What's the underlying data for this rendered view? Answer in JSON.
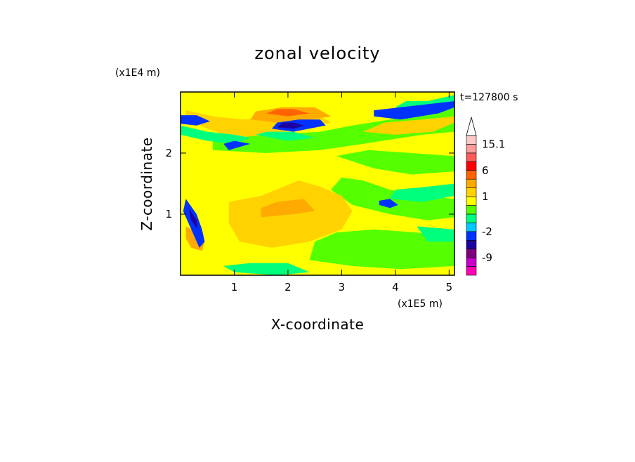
{
  "chart_data": {
    "type": "heatmap",
    "title": "zonal velocity",
    "xlabel": "X-coordinate",
    "ylabel": "Z-coordinate",
    "x_units": "(x1E5 m)",
    "y_units": "(x1E4 m)",
    "time_label": "t=127800 s",
    "xlim": [
      0,
      5.1
    ],
    "ylim": [
      0,
      3.0
    ],
    "x_ticks": [
      "1",
      "2",
      "3",
      "4",
      "5"
    ],
    "y_ticks": [
      "1",
      "2"
    ],
    "colorbar": {
      "levels": [
        -15,
        -12,
        -9,
        -6,
        -4,
        -2,
        -1,
        0,
        0.5,
        1,
        2,
        4,
        6,
        9,
        12,
        15.1
      ],
      "colors": [
        "#ff00b4",
        "#c800c8",
        "#7d007d",
        "#1e00a0",
        "#0032ff",
        "#00c8ff",
        "#00ff7d",
        "#55ff00",
        "#ffff00",
        "#ffd200",
        "#ffaa00",
        "#ff6400",
        "#ff0000",
        "#ff5a5a",
        "#ff9b9b",
        "#ffc8c8"
      ],
      "labels": [
        "15.1",
        "6",
        "1",
        "-2",
        "-9"
      ]
    },
    "regions": [
      {
        "value": 0.5,
        "shape": [
          [
            0.0,
            0.0
          ],
          [
            5.1,
            0.0
          ],
          [
            5.1,
            3.0
          ],
          [
            0.0,
            3.0
          ]
        ]
      },
      {
        "value": 0.2,
        "shape": [
          [
            0.6,
            2.05
          ],
          [
            1.6,
            2.0
          ],
          [
            2.6,
            2.05
          ],
          [
            3.4,
            2.15
          ],
          [
            4.5,
            2.3
          ],
          [
            5.1,
            2.35
          ],
          [
            5.1,
            2.85
          ],
          [
            4.6,
            2.65
          ],
          [
            3.9,
            2.55
          ],
          [
            3.2,
            2.45
          ],
          [
            2.6,
            2.35
          ],
          [
            1.7,
            2.3
          ],
          [
            0.9,
            2.35
          ],
          [
            0.6,
            2.25
          ]
        ]
      },
      {
        "value": 0.2,
        "shape": [
          [
            2.8,
            1.4
          ],
          [
            3.2,
            1.15
          ],
          [
            3.9,
            1.0
          ],
          [
            4.6,
            0.9
          ],
          [
            5.1,
            0.95
          ],
          [
            5.1,
            1.25
          ],
          [
            4.5,
            1.3
          ],
          [
            3.9,
            1.4
          ],
          [
            3.4,
            1.55
          ],
          [
            3.0,
            1.6
          ]
        ]
      },
      {
        "value": 0.2,
        "shape": [
          [
            2.4,
            0.25
          ],
          [
            3.2,
            0.15
          ],
          [
            4.1,
            0.1
          ],
          [
            5.1,
            0.15
          ],
          [
            5.1,
            0.6
          ],
          [
            4.4,
            0.7
          ],
          [
            3.6,
            0.75
          ],
          [
            2.9,
            0.7
          ],
          [
            2.5,
            0.55
          ]
        ]
      },
      {
        "value": 0.2,
        "shape": [
          [
            2.9,
            1.95
          ],
          [
            3.6,
            1.75
          ],
          [
            4.3,
            1.65
          ],
          [
            5.1,
            1.7
          ],
          [
            5.1,
            1.95
          ],
          [
            4.3,
            2.0
          ],
          [
            3.5,
            2.05
          ]
        ]
      },
      {
        "value": 1.5,
        "shape": [
          [
            0.9,
            1.2
          ],
          [
            1.5,
            1.3
          ],
          [
            2.2,
            1.55
          ],
          [
            2.6,
            1.45
          ],
          [
            3.0,
            1.3
          ],
          [
            3.2,
            1.05
          ],
          [
            3.0,
            0.75
          ],
          [
            2.4,
            0.55
          ],
          [
            1.7,
            0.45
          ],
          [
            1.1,
            0.55
          ],
          [
            0.9,
            0.85
          ]
        ]
      },
      {
        "value": 1.5,
        "shape": [
          [
            3.4,
            2.35
          ],
          [
            4.0,
            2.3
          ],
          [
            4.7,
            2.35
          ],
          [
            5.1,
            2.5
          ],
          [
            5.1,
            2.6
          ],
          [
            4.5,
            2.55
          ],
          [
            3.8,
            2.5
          ]
        ]
      },
      {
        "value": 1.5,
        "shape": [
          [
            0.1,
            2.55
          ],
          [
            0.5,
            2.4
          ],
          [
            1.0,
            2.25
          ],
          [
            1.6,
            2.3
          ],
          [
            2.2,
            2.4
          ],
          [
            2.8,
            2.5
          ],
          [
            2.6,
            2.6
          ],
          [
            1.9,
            2.6
          ],
          [
            1.2,
            2.55
          ],
          [
            0.6,
            2.6
          ],
          [
            0.1,
            2.7
          ]
        ]
      },
      {
        "value": 3.0,
        "shape": [
          [
            1.3,
            2.55
          ],
          [
            1.8,
            2.5
          ],
          [
            2.4,
            2.55
          ],
          [
            2.8,
            2.6
          ],
          [
            2.5,
            2.75
          ],
          [
            1.9,
            2.75
          ],
          [
            1.4,
            2.68
          ]
        ]
      },
      {
        "value": 3.0,
        "shape": [
          [
            1.5,
            0.95
          ],
          [
            2.1,
            1.0
          ],
          [
            2.5,
            1.05
          ],
          [
            2.3,
            1.25
          ],
          [
            1.8,
            1.2
          ],
          [
            1.5,
            1.1
          ]
        ]
      },
      {
        "value": 3.0,
        "shape": [
          [
            0.1,
            0.8
          ],
          [
            0.3,
            0.7
          ],
          [
            0.45,
            0.55
          ],
          [
            0.4,
            0.4
          ],
          [
            0.2,
            0.45
          ],
          [
            0.1,
            0.6
          ]
        ]
      },
      {
        "value": 5.0,
        "shape": [
          [
            1.6,
            2.65
          ],
          [
            2.0,
            2.6
          ],
          [
            2.4,
            2.65
          ],
          [
            2.1,
            2.72
          ],
          [
            1.8,
            2.72
          ]
        ]
      },
      {
        "value": -0.5,
        "shape": [
          [
            0.0,
            2.3
          ],
          [
            0.5,
            2.2
          ],
          [
            1.0,
            2.15
          ],
          [
            1.3,
            2.25
          ],
          [
            1.0,
            2.3
          ],
          [
            0.5,
            2.35
          ],
          [
            0.0,
            2.45
          ]
        ]
      },
      {
        "value": -0.5,
        "shape": [
          [
            3.9,
            1.25
          ],
          [
            4.5,
            1.2
          ],
          [
            5.1,
            1.3
          ],
          [
            5.1,
            1.5
          ],
          [
            4.6,
            1.45
          ],
          [
            4.0,
            1.4
          ]
        ]
      },
      {
        "value": -0.5,
        "shape": [
          [
            4.4,
            0.8
          ],
          [
            5.1,
            0.75
          ],
          [
            5.1,
            0.55
          ],
          [
            4.6,
            0.55
          ]
        ]
      },
      {
        "value": -0.5,
        "shape": [
          [
            1.4,
            2.3
          ],
          [
            2.0,
            2.2
          ],
          [
            2.5,
            2.25
          ],
          [
            2.1,
            2.35
          ],
          [
            1.6,
            2.35
          ]
        ]
      },
      {
        "value": -0.5,
        "shape": [
          [
            4.0,
            2.75
          ],
          [
            4.6,
            2.65
          ],
          [
            5.1,
            2.75
          ],
          [
            5.1,
            2.95
          ],
          [
            4.6,
            2.85
          ],
          [
            4.2,
            2.85
          ]
        ]
      },
      {
        "value": -0.5,
        "shape": [
          [
            1.0,
            0.05
          ],
          [
            1.8,
            0.0
          ],
          [
            2.4,
            0.05
          ],
          [
            2.0,
            0.2
          ],
          [
            1.3,
            0.2
          ],
          [
            0.8,
            0.15
          ]
        ]
      },
      {
        "value": -3.0,
        "shape": [
          [
            1.7,
            2.4
          ],
          [
            2.1,
            2.35
          ],
          [
            2.7,
            2.45
          ],
          [
            2.6,
            2.55
          ],
          [
            2.2,
            2.55
          ],
          [
            1.8,
            2.5
          ]
        ]
      },
      {
        "value": -3.0,
        "shape": [
          [
            3.6,
            2.6
          ],
          [
            4.1,
            2.55
          ],
          [
            4.8,
            2.65
          ],
          [
            5.1,
            2.75
          ],
          [
            5.1,
            2.85
          ],
          [
            4.6,
            2.8
          ],
          [
            4.1,
            2.75
          ],
          [
            3.6,
            2.7
          ]
        ]
      },
      {
        "value": -3.0,
        "shape": [
          [
            0.0,
            2.48
          ],
          [
            0.3,
            2.45
          ],
          [
            0.55,
            2.52
          ],
          [
            0.3,
            2.62
          ],
          [
            0.0,
            2.62
          ]
        ]
      },
      {
        "value": -3.0,
        "shape": [
          [
            0.1,
            1.25
          ],
          [
            0.3,
            1.0
          ],
          [
            0.4,
            0.75
          ],
          [
            0.45,
            0.55
          ],
          [
            0.35,
            0.45
          ],
          [
            0.2,
            0.75
          ],
          [
            0.05,
            1.05
          ]
        ]
      },
      {
        "value": -3.0,
        "shape": [
          [
            0.9,
            2.05
          ],
          [
            1.1,
            2.1
          ],
          [
            1.3,
            2.15
          ],
          [
            1.0,
            2.2
          ],
          [
            0.8,
            2.15
          ]
        ]
      },
      {
        "value": -3.0,
        "shape": [
          [
            3.7,
            1.15
          ],
          [
            3.9,
            1.1
          ],
          [
            4.05,
            1.15
          ],
          [
            3.9,
            1.25
          ],
          [
            3.7,
            1.22
          ]
        ]
      },
      {
        "value": -5.0,
        "shape": [
          [
            1.8,
            2.42
          ],
          [
            2.1,
            2.4
          ],
          [
            2.3,
            2.45
          ],
          [
            2.1,
            2.5
          ],
          [
            1.9,
            2.5
          ]
        ]
      },
      {
        "value": -5.0,
        "shape": [
          [
            0.15,
            1.1
          ],
          [
            0.3,
            0.9
          ],
          [
            0.32,
            0.75
          ],
          [
            0.2,
            0.9
          ]
        ]
      }
    ]
  }
}
